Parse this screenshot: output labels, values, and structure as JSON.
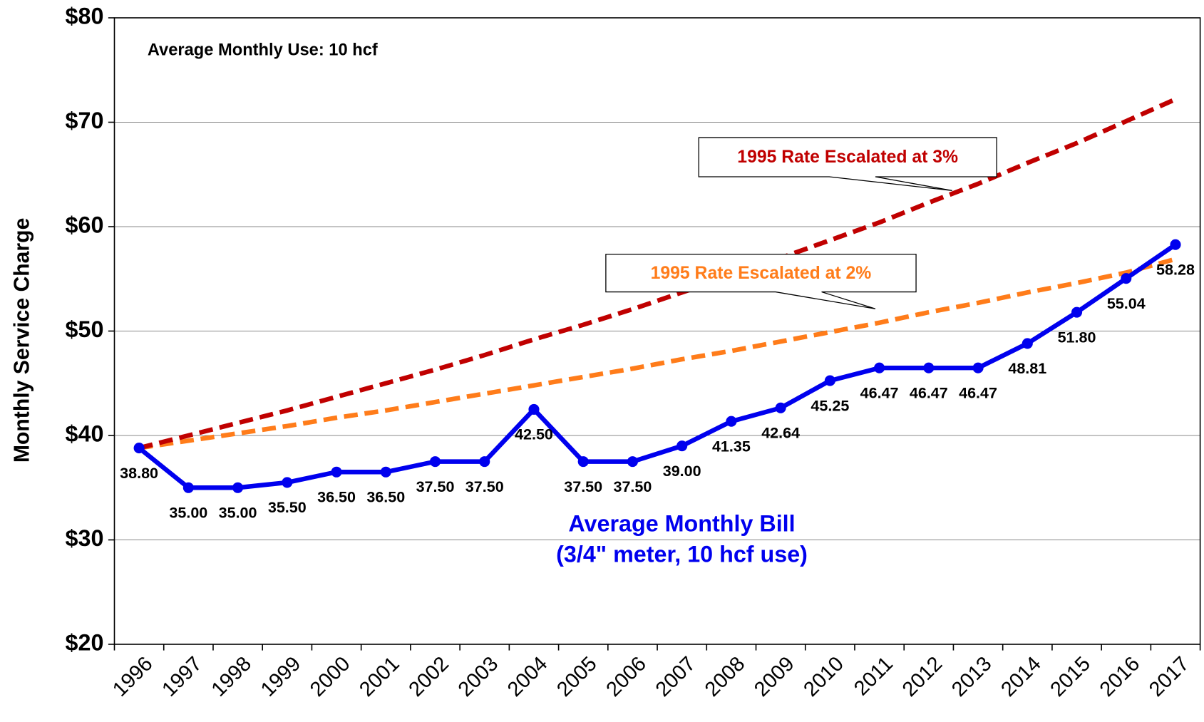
{
  "chart_data": {
    "type": "line",
    "y_label": "Monthly Service Charge",
    "annotations": [
      "Average Monthly Use: 10 hcf",
      "(3/4\" meter, 10 hcf use)"
    ],
    "categories": [
      "1996",
      "1997",
      "1998",
      "1999",
      "2000",
      "2001",
      "2002",
      "2003",
      "2004",
      "2005",
      "2006",
      "2007",
      "2008",
      "2009",
      "2010",
      "2011",
      "2012",
      "2013",
      "2014",
      "2015",
      "2016",
      "2017"
    ],
    "series": [
      {
        "name": "Average Monthly Bill",
        "color": "#0000ee",
        "dashed": false,
        "markers": true,
        "values": [
          38.8,
          35,
          35,
          35.5,
          36.5,
          36.5,
          37.5,
          37.5,
          42.5,
          37.5,
          37.5,
          39,
          41.35,
          42.64,
          45.25,
          46.47,
          46.47,
          46.47,
          48.81,
          51.8,
          55.04,
          58.28
        ],
        "value_labels": [
          "38.80",
          "35.00",
          "35.00",
          "35.50",
          "36.50",
          "36.50",
          "37.50",
          "37.50",
          "42.50",
          "37.50",
          "37.50",
          "39.00",
          "41.35",
          "42.64",
          "45.25",
          "46.47",
          "46.47",
          "46.47",
          "48.81",
          "51.80",
          "55.04",
          "58.28"
        ]
      },
      {
        "name": "1995 Rate Escalated at 3%",
        "color": "#c00000",
        "dashed": true,
        "markers": false,
        "values": [
          38.8,
          40.0,
          41.2,
          42.4,
          43.7,
          45.0,
          46.3,
          47.7,
          49.2,
          50.6,
          52.1,
          53.7,
          55.3,
          57.0,
          58.7,
          60.4,
          62.3,
          64.1,
          66.1,
          68.0,
          70.1,
          72.2
        ]
      },
      {
        "name": "1995 Rate Escalated at 2%",
        "color": "#ff7c1a",
        "dashed": true,
        "markers": false,
        "values": [
          38.8,
          39.5,
          40.2,
          40.9,
          41.7,
          42.4,
          43.2,
          44.0,
          44.8,
          45.6,
          46.4,
          47.3,
          48.1,
          49.0,
          49.9,
          50.8,
          51.8,
          52.7,
          53.7,
          54.6,
          55.6,
          56.9
        ]
      }
    ],
    "ylim": [
      20,
      80
    ],
    "yticks": [
      {
        "value": 20,
        "label": "$20"
      },
      {
        "value": 30,
        "label": "$30"
      },
      {
        "value": 40,
        "label": "$40"
      },
      {
        "value": 50,
        "label": "$50"
      },
      {
        "value": 60,
        "label": "$60"
      },
      {
        "value": 70,
        "label": "$70"
      },
      {
        "value": 80,
        "label": "$80"
      }
    ],
    "grid": true
  }
}
